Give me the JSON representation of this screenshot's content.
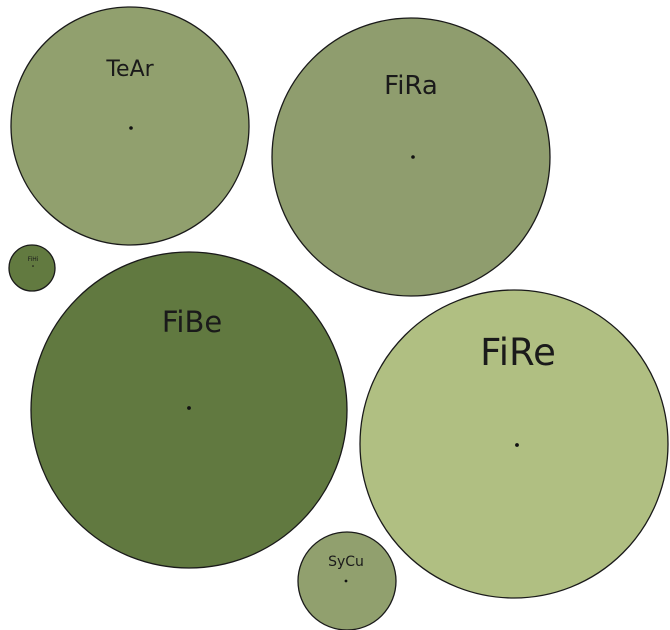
{
  "bubbles": [
    {
      "id": "tear",
      "label": "TeAr",
      "color": "#91a06e"
    },
    {
      "id": "fira",
      "label": "FiRa",
      "color": "#8f9d6e"
    },
    {
      "id": "fihi",
      "label": "FiHi",
      "color": "#627a40"
    },
    {
      "id": "fibe",
      "label": "FiBe",
      "color": "#617940"
    },
    {
      "id": "fire",
      "label": "FiRe",
      "color": "#b0bf82"
    },
    {
      "id": "sycu",
      "label": "SyCu",
      "color": "#91a06e"
    }
  ]
}
